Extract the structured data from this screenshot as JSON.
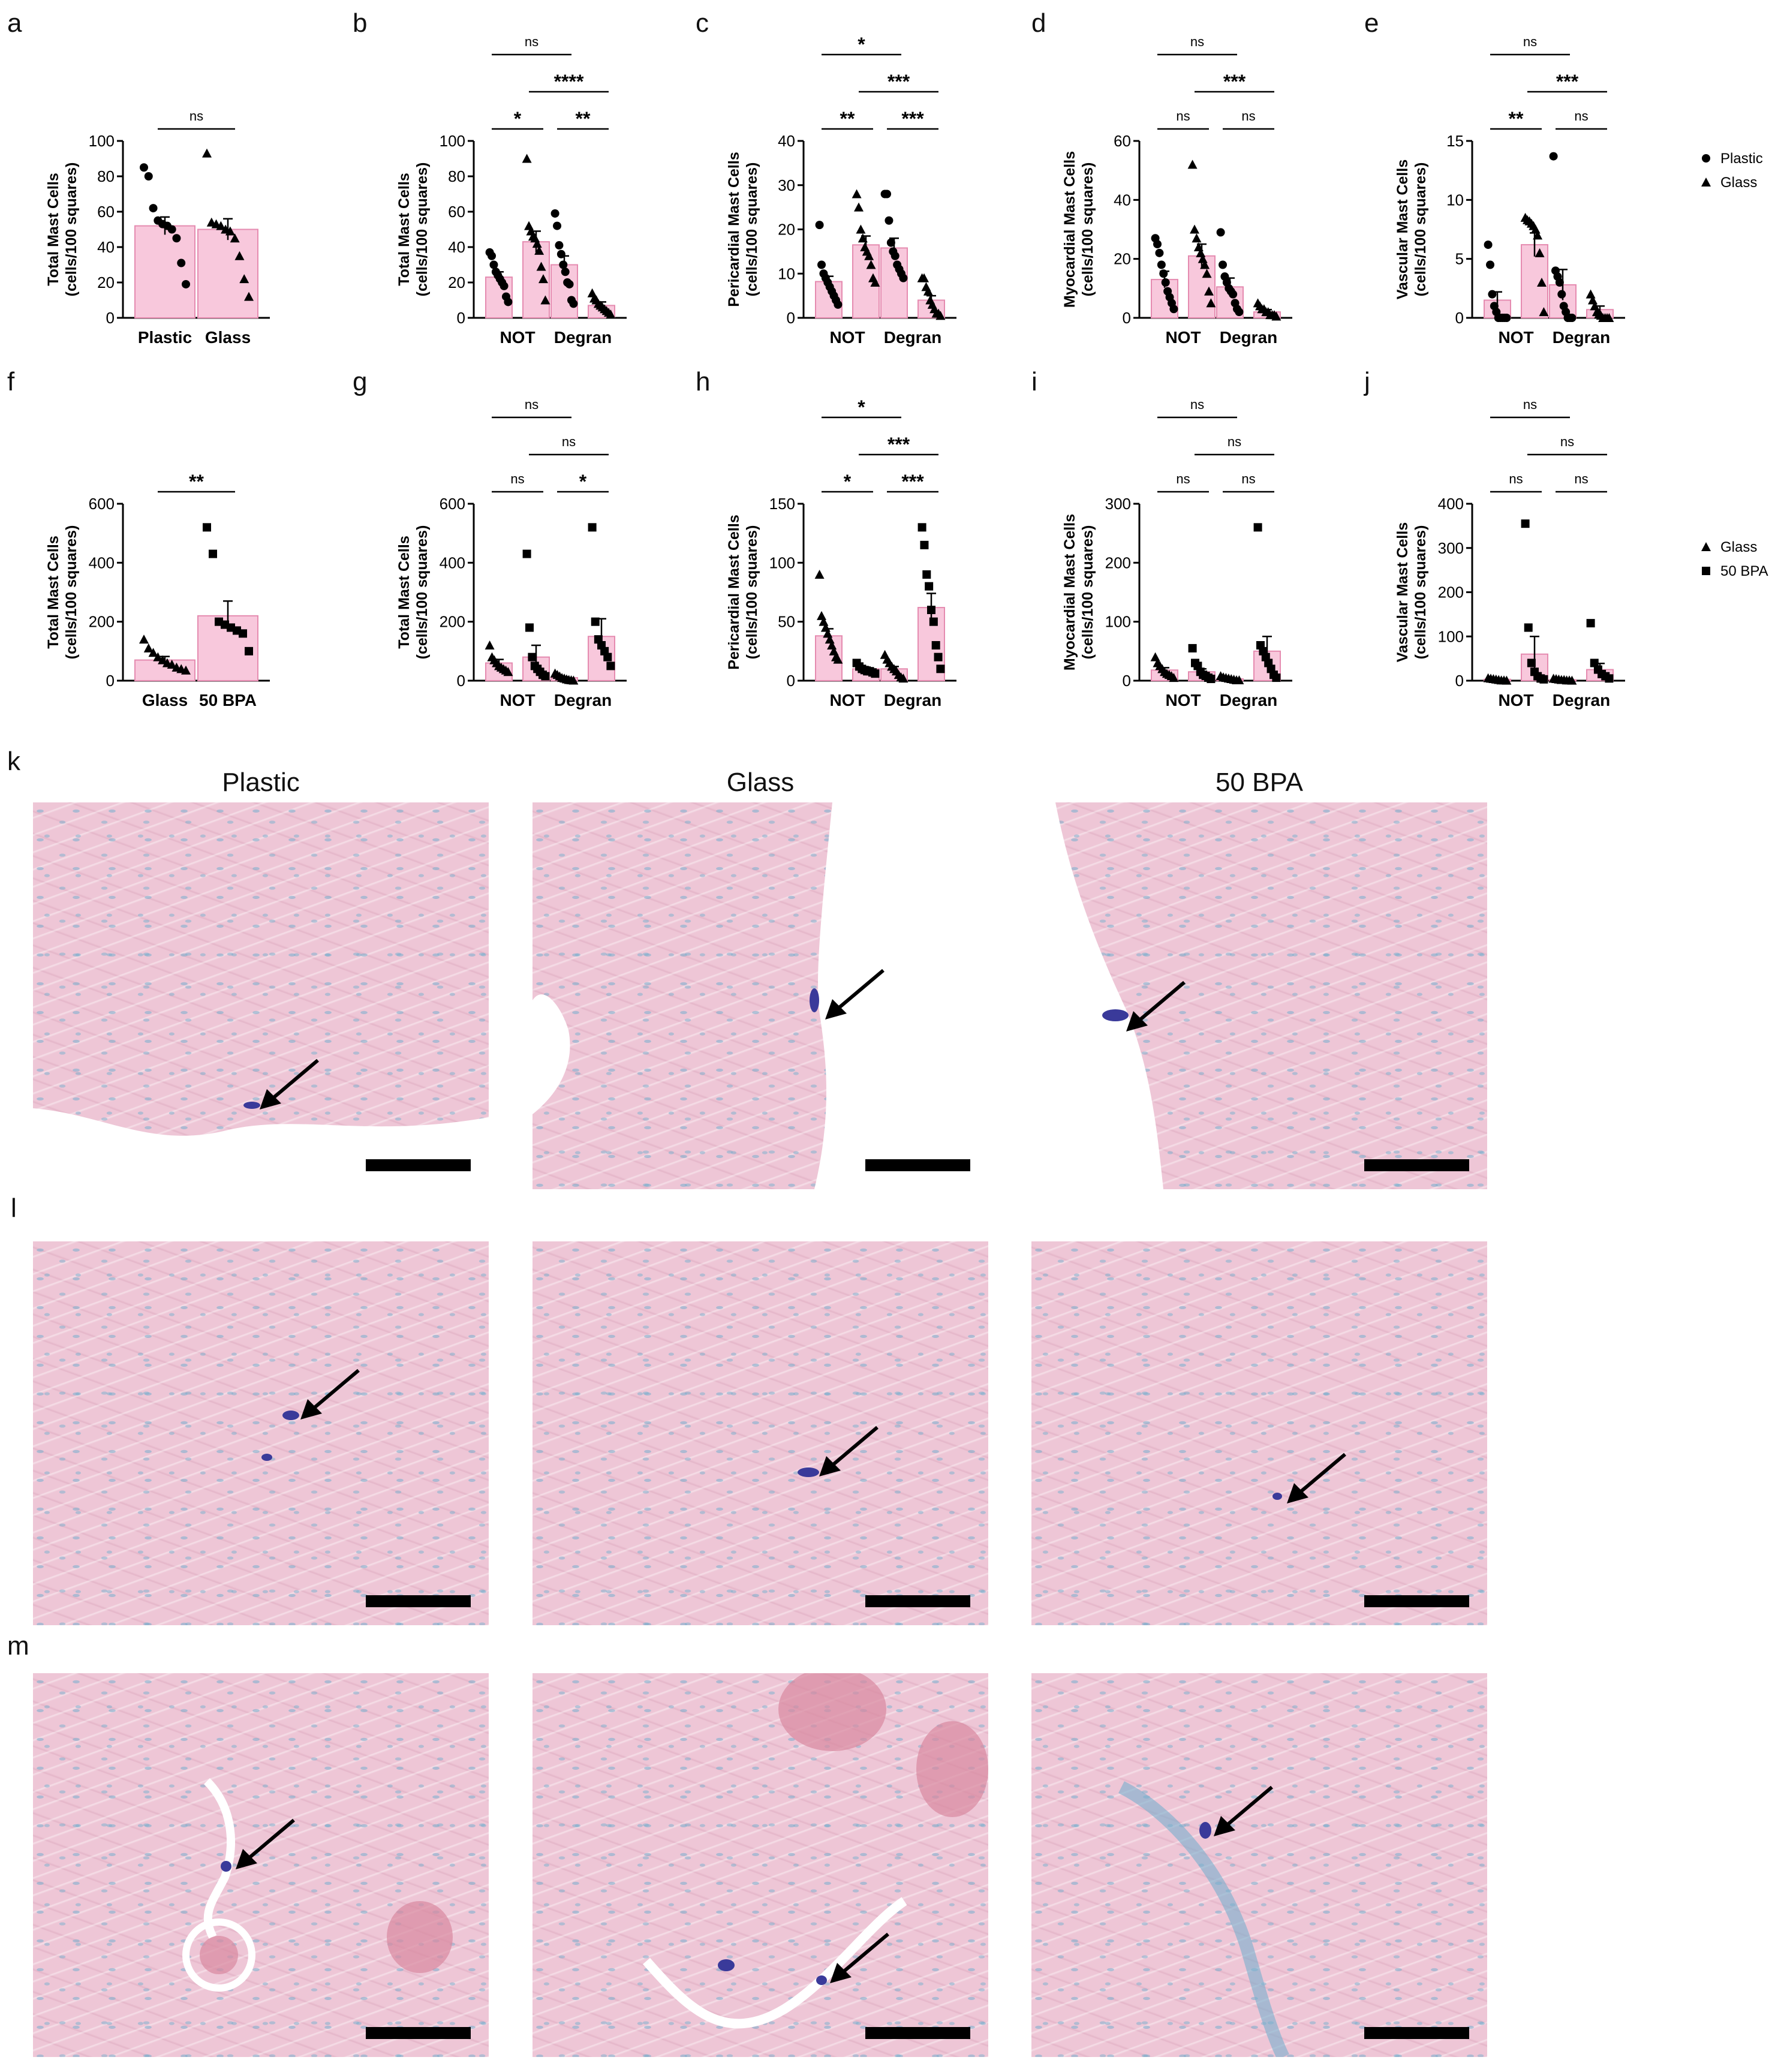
{
  "panel_letters": [
    "a",
    "b",
    "c",
    "d",
    "e",
    "f",
    "g",
    "h",
    "i",
    "j",
    "k",
    "l",
    "m"
  ],
  "legends": {
    "top": [
      {
        "label": "Plastic",
        "marker": "circle"
      },
      {
        "label": "Glass",
        "marker": "triangle"
      }
    ],
    "bottom": [
      {
        "label": "Glass",
        "marker": "triangle"
      },
      {
        "label": "50 BPA",
        "marker": "square"
      }
    ]
  },
  "micrograph_columns": [
    "Plastic",
    "Glass",
    "50 BPA"
  ],
  "colors": {
    "bar_fill": "#f8c8dc",
    "bar_stroke": "#e58bb0",
    "tissue": "#eec6d6",
    "mast_cell": "#3a3a9a"
  },
  "chart_data": [
    {
      "id": "a",
      "type": "bar",
      "ylabel": "Total Mast Cells\n(cells/100 squares)",
      "ylim": [
        0,
        100
      ],
      "yticks": [
        0,
        20,
        40,
        60,
        80,
        100
      ],
      "categories": [
        "Plastic",
        "Glass"
      ],
      "values": [
        52,
        50
      ],
      "sem": [
        5,
        6
      ],
      "points": [
        [
          85,
          80,
          62,
          55,
          53,
          52,
          50,
          45,
          31,
          19
        ],
        [
          93,
          54,
          53,
          52,
          50,
          49,
          45,
          35,
          22,
          12
        ]
      ],
      "markers": [
        "circle",
        "triangle"
      ],
      "sig": [
        {
          "from": 0,
          "to": 1,
          "label": "ns"
        }
      ]
    },
    {
      "id": "b",
      "type": "bar",
      "ylabel": "Total Mast Cells\n(cells/100 squares)",
      "ylim": [
        0,
        100
      ],
      "yticks": [
        0,
        20,
        40,
        60,
        80,
        100
      ],
      "groups": [
        "NOT",
        "Degran"
      ],
      "values": [
        23,
        43,
        30,
        7
      ],
      "sem": [
        3,
        6,
        5,
        2
      ],
      "points": [
        [
          37,
          35,
          30,
          26,
          24,
          22,
          20,
          18,
          12,
          9
        ],
        [
          90,
          52,
          49,
          46,
          45,
          42,
          38,
          29,
          22,
          10
        ],
        [
          59,
          52,
          41,
          36,
          30,
          26,
          20,
          19,
          10,
          8
        ],
        [
          14,
          11,
          10,
          8,
          7,
          6,
          5,
          4,
          3,
          2
        ]
      ],
      "markers": [
        "circle",
        "triangle",
        "circle",
        "triangle"
      ],
      "sig": [
        {
          "from": 0,
          "to": 1,
          "label": "*",
          "level": 0
        },
        {
          "from": 2,
          "to": 3,
          "label": "**",
          "level": 0
        },
        {
          "from": 1,
          "to": 3,
          "label": "****",
          "level": 1
        },
        {
          "from": 0,
          "to": 2,
          "label": "ns",
          "level": 2
        }
      ]
    },
    {
      "id": "c",
      "type": "bar",
      "ylabel": "Pericardial Mast Cells\n(cells/100 squares)",
      "ylim": [
        0,
        40
      ],
      "yticks": [
        0,
        10,
        20,
        30,
        40
      ],
      "groups": [
        "NOT",
        "Degran"
      ],
      "values": [
        8.2,
        16.5,
        15.8,
        4
      ],
      "sem": [
        1.2,
        2,
        2.2,
        1
      ],
      "points": [
        [
          21,
          12,
          10,
          9,
          8,
          7,
          6,
          5,
          4,
          3
        ],
        [
          28,
          25,
          20,
          18,
          16,
          15,
          14,
          12,
          9,
          8
        ],
        [
          28,
          28,
          22,
          17,
          15,
          14,
          12,
          11,
          10,
          9
        ],
        [
          9,
          9,
          7,
          6,
          4,
          3,
          2,
          1,
          1,
          0.5
        ]
      ],
      "markers": [
        "circle",
        "triangle",
        "circle",
        "triangle"
      ],
      "sig": [
        {
          "from": 0,
          "to": 1,
          "label": "**",
          "level": 0
        },
        {
          "from": 2,
          "to": 3,
          "label": "***",
          "level": 0
        },
        {
          "from": 1,
          "to": 3,
          "label": "***",
          "level": 1
        },
        {
          "from": 0,
          "to": 2,
          "label": "*",
          "level": 2
        }
      ]
    },
    {
      "id": "d",
      "type": "bar",
      "ylabel": "Myocardial Mast Cells\n(cells/100 squares)",
      "ylim": [
        0,
        60
      ],
      "yticks": [
        0,
        20,
        40,
        60
      ],
      "groups": [
        "NOT",
        "Degran"
      ],
      "values": [
        13,
        21,
        10.5,
        2
      ],
      "sem": [
        2.8,
        4,
        3,
        0.8
      ],
      "points": [
        [
          27,
          25,
          22,
          18,
          15,
          12,
          9,
          7,
          5,
          3
        ],
        [
          52,
          30,
          27,
          24,
          22,
          20,
          18,
          15,
          9,
          5
        ],
        [
          29,
          18,
          14,
          12,
          10,
          9,
          8,
          5,
          3,
          2
        ],
        [
          5,
          4,
          3,
          3,
          2,
          2,
          1,
          1,
          1,
          0.5
        ]
      ],
      "markers": [
        "circle",
        "triangle",
        "circle",
        "triangle"
      ],
      "sig": [
        {
          "from": 0,
          "to": 1,
          "label": "ns",
          "level": 0
        },
        {
          "from": 2,
          "to": 3,
          "label": "ns",
          "level": 0
        },
        {
          "from": 1,
          "to": 3,
          "label": "***",
          "level": 1
        },
        {
          "from": 0,
          "to": 2,
          "label": "ns",
          "level": 2
        }
      ]
    },
    {
      "id": "e",
      "type": "bar",
      "ylabel": "Vascular Mast Cells\n(cells/100 squares)",
      "ylim": [
        0,
        15
      ],
      "yticks": [
        0,
        5,
        10,
        15
      ],
      "groups": [
        "NOT",
        "Degran"
      ],
      "values": [
        1.5,
        6.2,
        2.8,
        0.7
      ],
      "sem": [
        0.7,
        1,
        1.3,
        0.3
      ],
      "points": [
        [
          6.2,
          4.5,
          2,
          1,
          0.5,
          0,
          0,
          0,
          0,
          0
        ],
        [
          8.5,
          8.3,
          8.2,
          8,
          7.8,
          7.5,
          7,
          5.5,
          3,
          0.5
        ],
        [
          13.7,
          4,
          3.5,
          3,
          2,
          1,
          0.5,
          0,
          0,
          0
        ],
        [
          2,
          1.5,
          1,
          0.5,
          0.3,
          0.2,
          0,
          0,
          0,
          0
        ]
      ],
      "markers": [
        "circle",
        "triangle",
        "circle",
        "triangle"
      ],
      "sig": [
        {
          "from": 0,
          "to": 1,
          "label": "**",
          "level": 0
        },
        {
          "from": 2,
          "to": 3,
          "label": "ns",
          "level": 0
        },
        {
          "from": 1,
          "to": 3,
          "label": "***",
          "level": 1
        },
        {
          "from": 0,
          "to": 2,
          "label": "ns",
          "level": 2
        }
      ]
    },
    {
      "id": "f",
      "type": "bar",
      "ylabel": "Total Mast Cells\n(cells/100 squares)",
      "ylim": [
        0,
        600
      ],
      "yticks": [
        0,
        200,
        400,
        600
      ],
      "categories": [
        "Glass",
        "50 BPA"
      ],
      "values": [
        70,
        220
      ],
      "sem": [
        12,
        50
      ],
      "points": [
        [
          140,
          110,
          95,
          80,
          70,
          60,
          55,
          45,
          40,
          35
        ],
        [
          520,
          430,
          200,
          190,
          180,
          170,
          160,
          100
        ]
      ],
      "markers": [
        "triangle",
        "square"
      ],
      "sig": [
        {
          "from": 0,
          "to": 1,
          "label": "**"
        }
      ]
    },
    {
      "id": "g",
      "type": "bar",
      "ylabel": "Total Mast Cells\n(cells/100 squares)",
      "ylim": [
        0,
        600
      ],
      "yticks": [
        0,
        200,
        400,
        600
      ],
      "groups": [
        "NOT",
        "Degran"
      ],
      "values": [
        60,
        80,
        10,
        150
      ],
      "sem": [
        12,
        40,
        3,
        60
      ],
      "points": [
        [
          120,
          80,
          70,
          60,
          50,
          45,
          40,
          35,
          30
        ],
        [
          430,
          180,
          80,
          50,
          40,
          30,
          20,
          15
        ],
        [
          25,
          20,
          15,
          10,
          8,
          5,
          3,
          2,
          1
        ],
        [
          520,
          200,
          140,
          120,
          100,
          80,
          50
        ]
      ],
      "markers": [
        "triangle",
        "square",
        "triangle",
        "square"
      ],
      "sig": [
        {
          "from": 0,
          "to": 1,
          "label": "ns",
          "level": 0
        },
        {
          "from": 2,
          "to": 3,
          "label": "*",
          "level": 0
        },
        {
          "from": 1,
          "to": 3,
          "label": "ns",
          "level": 1
        },
        {
          "from": 0,
          "to": 2,
          "label": "ns",
          "level": 2
        }
      ]
    },
    {
      "id": "h",
      "type": "bar",
      "ylabel": "Pericardial Mast Cells\n(cells/100 squares)",
      "ylim": [
        0,
        150
      ],
      "yticks": [
        0,
        50,
        100,
        150
      ],
      "groups": [
        "NOT",
        "Degran"
      ],
      "values": [
        38,
        10,
        10,
        62
      ],
      "sem": [
        6,
        1.5,
        2,
        12
      ],
      "points": [
        [
          90,
          55,
          50,
          45,
          40,
          35,
          30,
          25,
          20,
          18
        ],
        [
          15,
          12,
          10,
          9,
          8,
          8,
          7,
          6
        ],
        [
          22,
          18,
          15,
          12,
          10,
          8,
          5,
          3,
          2
        ],
        [
          130,
          115,
          90,
          80,
          60,
          50,
          30,
          20,
          10
        ]
      ],
      "markers": [
        "triangle",
        "square",
        "triangle",
        "square"
      ],
      "sig": [
        {
          "from": 0,
          "to": 1,
          "label": "*",
          "level": 0
        },
        {
          "from": 2,
          "to": 3,
          "label": "***",
          "level": 0
        },
        {
          "from": 1,
          "to": 3,
          "label": "***",
          "level": 1
        },
        {
          "from": 0,
          "to": 2,
          "label": "*",
          "level": 2
        }
      ]
    },
    {
      "id": "i",
      "type": "bar",
      "ylabel": "Myocardial Mast Cells\n(cells/100 squares)",
      "ylim": [
        0,
        300
      ],
      "yticks": [
        0,
        100,
        200,
        300
      ],
      "groups": [
        "NOT",
        "Degran"
      ],
      "values": [
        18,
        15,
        3,
        50
      ],
      "sem": [
        4,
        5,
        1,
        25
      ],
      "points": [
        [
          40,
          30,
          25,
          20,
          15,
          12,
          10,
          8,
          5
        ],
        [
          55,
          30,
          25,
          15,
          10,
          8,
          5,
          3
        ],
        [
          8,
          6,
          5,
          4,
          3,
          2,
          1,
          1
        ],
        [
          260,
          60,
          50,
          40,
          30,
          20,
          10,
          5
        ]
      ],
      "markers": [
        "triangle",
        "square",
        "triangle",
        "square"
      ],
      "sig": [
        {
          "from": 0,
          "to": 1,
          "label": "ns",
          "level": 0
        },
        {
          "from": 2,
          "to": 3,
          "label": "ns",
          "level": 0
        },
        {
          "from": 1,
          "to": 3,
          "label": "ns",
          "level": 1
        },
        {
          "from": 0,
          "to": 2,
          "label": "ns",
          "level": 2
        }
      ]
    },
    {
      "id": "j",
      "type": "bar",
      "ylabel": "Vascular Mast Cells\n(cells/100 squares)",
      "ylim": [
        0,
        400
      ],
      "yticks": [
        0,
        100,
        200,
        300,
        400
      ],
      "groups": [
        "NOT",
        "Degran"
      ],
      "values": [
        3,
        60,
        2,
        25
      ],
      "sem": [
        1,
        40,
        1,
        14
      ],
      "points": [
        [
          6,
          5,
          4,
          3,
          2,
          1,
          1,
          0.5
        ],
        [
          355,
          120,
          40,
          20,
          10,
          5,
          3
        ],
        [
          5,
          4,
          3,
          2,
          2,
          1,
          1,
          0.5
        ],
        [
          130,
          40,
          25,
          15,
          10,
          5
        ]
      ],
      "markers": [
        "triangle",
        "square",
        "triangle",
        "square"
      ],
      "sig": [
        {
          "from": 0,
          "to": 1,
          "label": "ns",
          "level": 0
        },
        {
          "from": 2,
          "to": 3,
          "label": "ns",
          "level": 0
        },
        {
          "from": 1,
          "to": 3,
          "label": "ns",
          "level": 1
        },
        {
          "from": 0,
          "to": 2,
          "label": "ns",
          "level": 2
        }
      ]
    }
  ]
}
